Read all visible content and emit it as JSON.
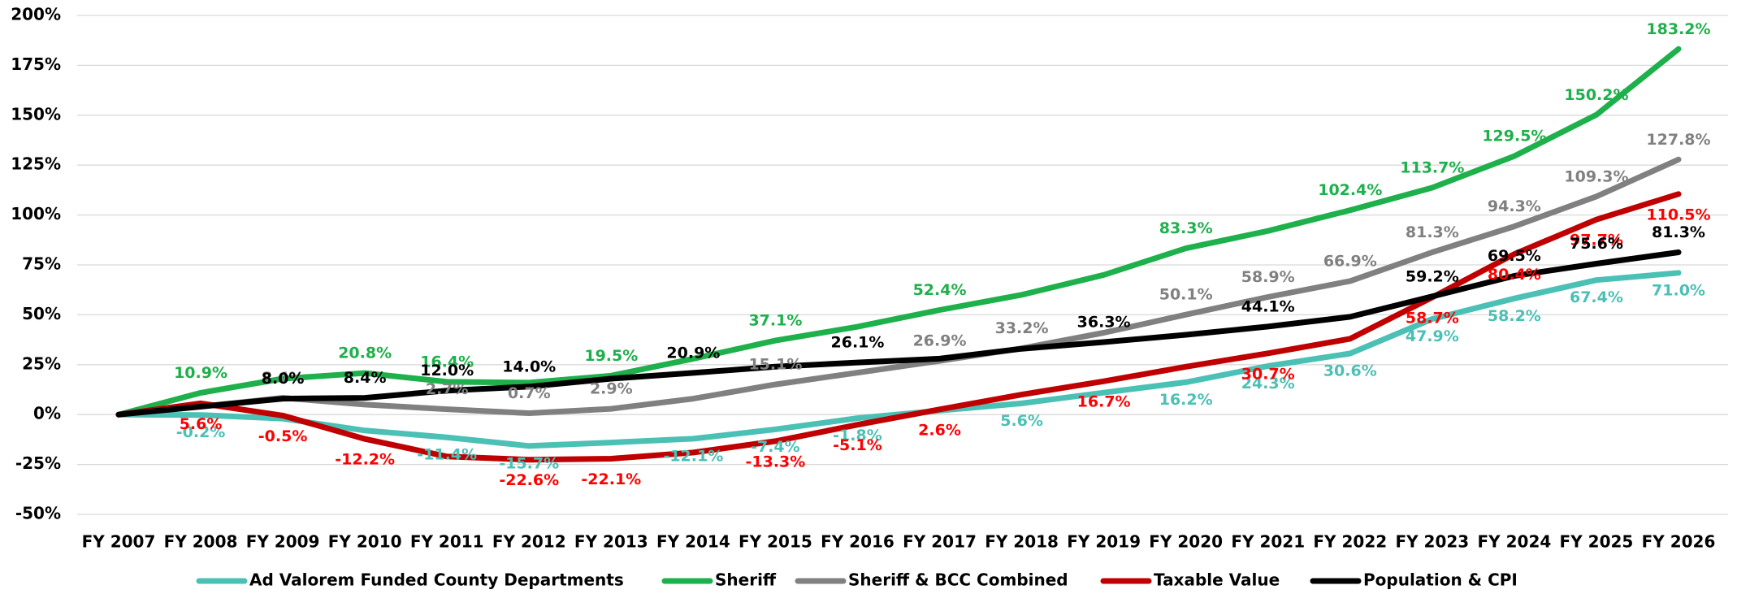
{
  "chart_data": {
    "type": "line",
    "categories": [
      "FY 2007",
      "FY 2008",
      "FY 2009",
      "FY 2010",
      "FY 2011",
      "FY 2012",
      "FY 2013",
      "FY 2014",
      "FY 2015",
      "FY 2016",
      "FY 2017",
      "FY 2018",
      "FY 2019",
      "FY 2020",
      "FY 2021",
      "FY 2022",
      "FY 2023",
      "FY 2024",
      "FY 2025",
      "FY 2026"
    ],
    "ylim": [
      -50,
      200
    ],
    "yticks": [
      {
        "value": -50,
        "label": "-50%"
      },
      {
        "value": -25,
        "label": "-25%"
      },
      {
        "value": 0,
        "label": "0%"
      },
      {
        "value": 25,
        "label": "25%"
      },
      {
        "value": 50,
        "label": "50%"
      },
      {
        "value": 75,
        "label": "75%"
      },
      {
        "value": 100,
        "label": "100%"
      },
      {
        "value": 125,
        "label": "125%"
      },
      {
        "value": 150,
        "label": "150%"
      },
      {
        "value": 175,
        "label": "175%"
      },
      {
        "value": 200,
        "label": "200%"
      }
    ],
    "grid": true,
    "legend": "bottom",
    "series": [
      {
        "name": "Ad Valorem Funded County Departments",
        "color": "#4bc0b5",
        "label_color": "#4bc0b5",
        "values": [
          0,
          -0.2,
          -2,
          -8,
          -11.4,
          -15.7,
          -14,
          -12.1,
          -7.4,
          -1.8,
          2,
          5.6,
          11,
          16.2,
          24.3,
          30.6,
          47.9,
          58.2,
          67.4,
          71.0
        ],
        "value_labels": [
          null,
          "-0.2%",
          null,
          null,
          "-11.4%",
          "-15.7%",
          null,
          "-12.1%",
          "-7.4%",
          "-1.8%",
          null,
          "5.6%",
          null,
          "16.2%",
          "24.3%",
          "30.6%",
          "47.9%",
          "58.2%",
          "67.4%",
          "71.0%"
        ]
      },
      {
        "name": "Sheriff",
        "color": "#1db04b",
        "label_color": "#1db04b",
        "values": [
          0,
          10.9,
          18,
          20.8,
          16.4,
          16,
          19.5,
          28,
          37.1,
          44,
          52.4,
          60,
          70,
          83.3,
          92,
          102.4,
          113.7,
          129.5,
          150.2,
          183.2
        ],
        "value_labels": [
          null,
          "10.9%",
          null,
          "20.8%",
          "16.4%",
          null,
          "19.5%",
          null,
          "37.1%",
          null,
          "52.4%",
          null,
          null,
          "83.3%",
          null,
          "102.4%",
          "113.7%",
          "129.5%",
          "150.2%",
          "183.2%"
        ]
      },
      {
        "name": "Sheriff & BCC Combined",
        "color": "#808080",
        "label_color": "#808080",
        "values": [
          0,
          4,
          8.4,
          5,
          2.7,
          0.7,
          2.9,
          8,
          15.1,
          21,
          26.9,
          33.2,
          41,
          50.1,
          58.9,
          66.9,
          81.3,
          94.3,
          109.3,
          127.8
        ],
        "value_labels": [
          null,
          null,
          "8.4%",
          null,
          "2.7%",
          "0.7%",
          "2.9%",
          null,
          "15.1%",
          null,
          "26.9%",
          "33.2%",
          null,
          "50.1%",
          "58.9%",
          "66.9%",
          "81.3%",
          "94.3%",
          "109.3%",
          "127.8%"
        ]
      },
      {
        "name": "Taxable Value",
        "color": "#c00000",
        "label_color": "#ff0000",
        "values": [
          0,
          5.6,
          -0.5,
          -12.2,
          -21,
          -22.6,
          -22.1,
          -19,
          -13.3,
          -5.1,
          2.6,
          10,
          16.7,
          24,
          30.7,
          38,
          58.7,
          80.4,
          97.7,
          110.5
        ],
        "value_labels": [
          null,
          "5.6%",
          "-0.5%",
          "-12.2%",
          null,
          "-22.6%",
          "-22.1%",
          null,
          "-13.3%",
          "-5.1%",
          "2.6%",
          null,
          "16.7%",
          null,
          "30.7%",
          null,
          "58.7%",
          "80.4%",
          "97.7%",
          "110.5%"
        ]
      },
      {
        "name": "Population & CPI",
        "color": "#000000",
        "label_color": "#000000",
        "values": [
          0,
          4,
          8.0,
          8.4,
          12.0,
          14.0,
          18,
          20.9,
          24,
          26.1,
          28,
          33,
          36.3,
          40,
          44.1,
          49,
          59.2,
          69.5,
          75.6,
          81.3
        ],
        "value_labels": [
          null,
          null,
          "8.0%",
          "8.4%",
          "12.0%",
          "14.0%",
          null,
          "20.9%",
          null,
          "26.1%",
          null,
          null,
          "36.3%",
          null,
          "44.1%",
          null,
          "59.2%",
          "69.5%",
          "75.6%",
          "81.3%"
        ]
      }
    ]
  }
}
